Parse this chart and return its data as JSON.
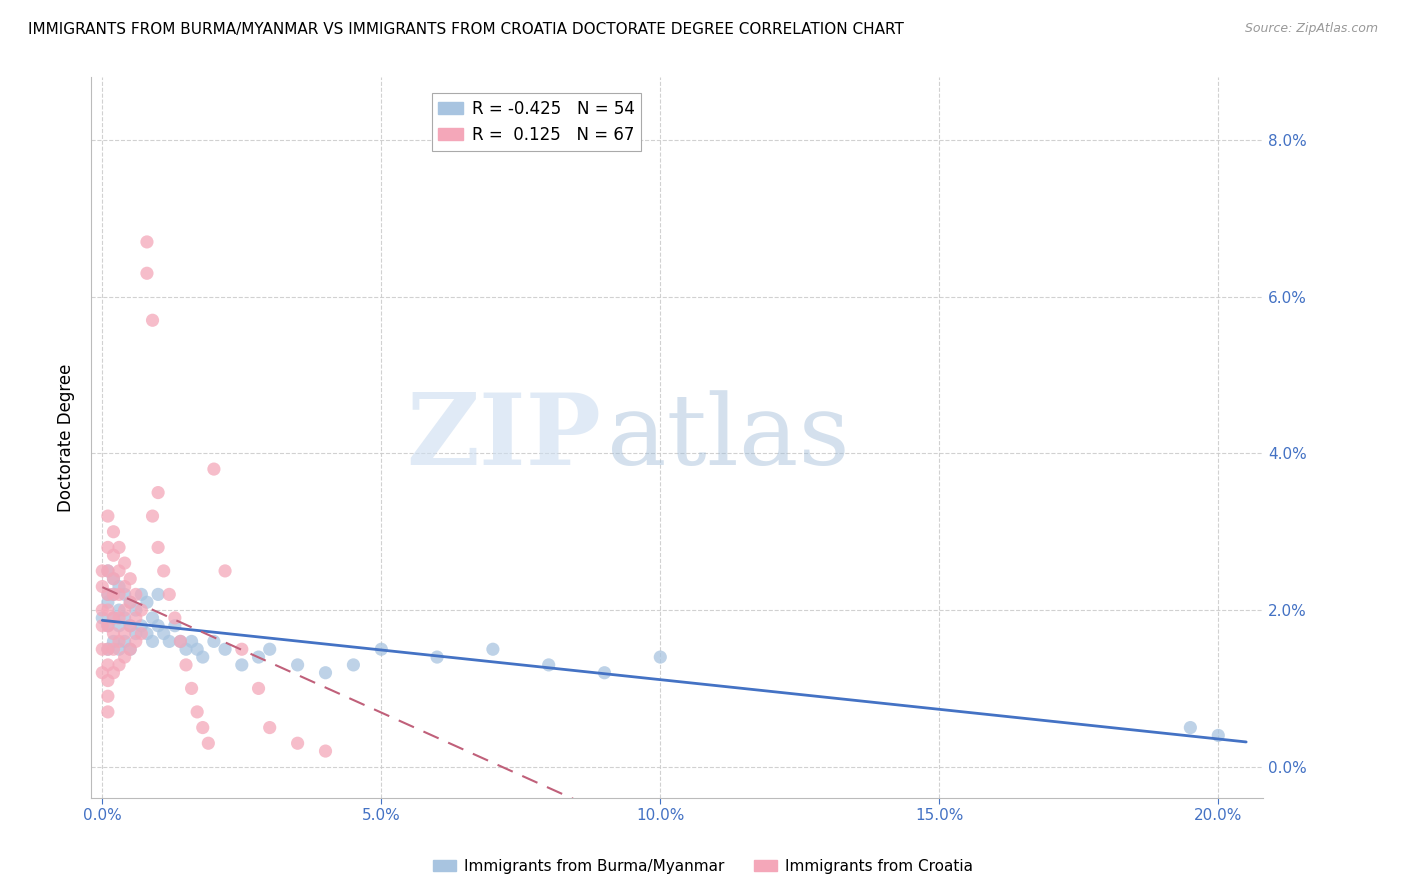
{
  "title": "IMMIGRANTS FROM BURMA/MYANMAR VS IMMIGRANTS FROM CROATIA DOCTORATE DEGREE CORRELATION CHART",
  "source": "Source: ZipAtlas.com",
  "ylabel": "Doctorate Degree",
  "xlabel_ticks": [
    "0.0%",
    "5.0%",
    "10.0%",
    "15.0%",
    "20.0%"
  ],
  "xlabel_vals": [
    0.0,
    0.05,
    0.1,
    0.15,
    0.2
  ],
  "ylabel_ticks": [
    "0.0%",
    "2.0%",
    "4.0%",
    "6.0%",
    "8.0%"
  ],
  "ylabel_vals": [
    0.0,
    0.02,
    0.04,
    0.06,
    0.08
  ],
  "xlim": [
    -0.002,
    0.208
  ],
  "ylim": [
    -0.004,
    0.088
  ],
  "burma_x": [
    0.0,
    0.001,
    0.001,
    0.001,
    0.001,
    0.001,
    0.002,
    0.002,
    0.002,
    0.002,
    0.003,
    0.003,
    0.003,
    0.003,
    0.004,
    0.004,
    0.004,
    0.005,
    0.005,
    0.005,
    0.006,
    0.006,
    0.007,
    0.007,
    0.008,
    0.008,
    0.009,
    0.009,
    0.01,
    0.01,
    0.011,
    0.012,
    0.013,
    0.014,
    0.015,
    0.016,
    0.017,
    0.018,
    0.02,
    0.022,
    0.025,
    0.028,
    0.03,
    0.035,
    0.04,
    0.045,
    0.05,
    0.06,
    0.07,
    0.08,
    0.09,
    0.1,
    0.195,
    0.2
  ],
  "burma_y": [
    0.019,
    0.025,
    0.022,
    0.021,
    0.018,
    0.015,
    0.024,
    0.022,
    0.019,
    0.016,
    0.023,
    0.02,
    0.018,
    0.015,
    0.022,
    0.019,
    0.016,
    0.021,
    0.018,
    0.015,
    0.02,
    0.017,
    0.022,
    0.018,
    0.021,
    0.017,
    0.019,
    0.016,
    0.022,
    0.018,
    0.017,
    0.016,
    0.018,
    0.016,
    0.015,
    0.016,
    0.015,
    0.014,
    0.016,
    0.015,
    0.013,
    0.014,
    0.015,
    0.013,
    0.012,
    0.013,
    0.015,
    0.014,
    0.015,
    0.013,
    0.012,
    0.014,
    0.005,
    0.004
  ],
  "croatia_x": [
    0.0,
    0.0,
    0.0,
    0.0,
    0.0,
    0.0,
    0.001,
    0.001,
    0.001,
    0.001,
    0.001,
    0.001,
    0.001,
    0.001,
    0.001,
    0.001,
    0.001,
    0.002,
    0.002,
    0.002,
    0.002,
    0.002,
    0.002,
    0.002,
    0.002,
    0.003,
    0.003,
    0.003,
    0.003,
    0.003,
    0.003,
    0.004,
    0.004,
    0.004,
    0.004,
    0.004,
    0.005,
    0.005,
    0.005,
    0.005,
    0.006,
    0.006,
    0.006,
    0.007,
    0.007,
    0.008,
    0.008,
    0.009,
    0.009,
    0.01,
    0.01,
    0.011,
    0.012,
    0.013,
    0.014,
    0.015,
    0.016,
    0.017,
    0.018,
    0.019,
    0.02,
    0.022,
    0.025,
    0.028,
    0.03,
    0.035,
    0.04
  ],
  "croatia_y": [
    0.025,
    0.023,
    0.02,
    0.018,
    0.015,
    0.012,
    0.032,
    0.028,
    0.025,
    0.022,
    0.02,
    0.018,
    0.015,
    0.013,
    0.011,
    0.009,
    0.007,
    0.03,
    0.027,
    0.024,
    0.022,
    0.019,
    0.017,
    0.015,
    0.012,
    0.028,
    0.025,
    0.022,
    0.019,
    0.016,
    0.013,
    0.026,
    0.023,
    0.02,
    0.017,
    0.014,
    0.024,
    0.021,
    0.018,
    0.015,
    0.022,
    0.019,
    0.016,
    0.02,
    0.017,
    0.067,
    0.063,
    0.057,
    0.032,
    0.035,
    0.028,
    0.025,
    0.022,
    0.019,
    0.016,
    0.013,
    0.01,
    0.007,
    0.005,
    0.003,
    0.038,
    0.025,
    0.015,
    0.01,
    0.005,
    0.003,
    0.002
  ],
  "burma_color": "#a8c4e0",
  "croatia_color": "#f4a7b9",
  "burma_line_color": "#4472c4",
  "croatia_line_color": "#c0607a",
  "burma_name": "Immigrants from Burma/Myanmar",
  "croatia_name": "Immigrants from Croatia",
  "burma_R": -0.425,
  "burma_N": 54,
  "croatia_R": 0.125,
  "croatia_N": 67,
  "watermark_zip": "ZIP",
  "watermark_atlas": "atlas",
  "background_color": "#ffffff",
  "grid_color": "#cccccc",
  "title_fontsize": 11,
  "tick_label_color": "#4472c4"
}
